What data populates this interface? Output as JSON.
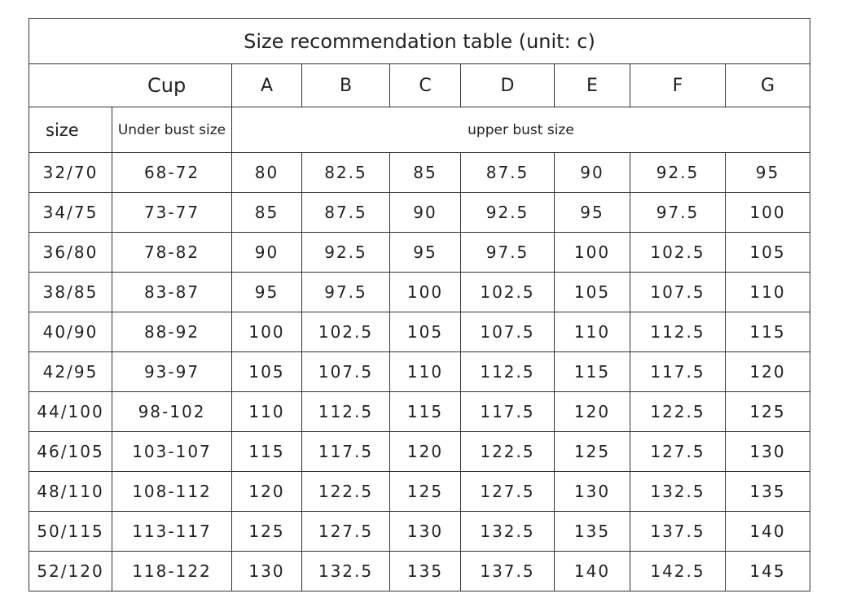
{
  "title": "Size recommendation table (unit: c)",
  "cup_label": "Cup",
  "cups": [
    "A",
    "B",
    "C",
    "D",
    "E",
    "F",
    "G"
  ],
  "size_label": "size",
  "under_bust_label": "Under bust size",
  "upper_bust_label": "upper bust size",
  "rows": [
    {
      "size": "32/70",
      "under": "68-72",
      "upper": [
        "80",
        "82.5",
        "85",
        "87.5",
        "90",
        "92.5",
        "95"
      ]
    },
    {
      "size": "34/75",
      "under": "73-77",
      "upper": [
        "85",
        "87.5",
        "90",
        "92.5",
        "95",
        "97.5",
        "100"
      ]
    },
    {
      "size": "36/80",
      "under": "78-82",
      "upper": [
        "90",
        "92.5",
        "95",
        "97.5",
        "100",
        "102.5",
        "105"
      ]
    },
    {
      "size": "38/85",
      "under": "83-87",
      "upper": [
        "95",
        "97.5",
        "100",
        "102.5",
        "105",
        "107.5",
        "110"
      ]
    },
    {
      "size": "40/90",
      "under": "88-92",
      "upper": [
        "100",
        "102.5",
        "105",
        "107.5",
        "110",
        "112.5",
        "115"
      ]
    },
    {
      "size": "42/95",
      "under": "93-97",
      "upper": [
        "105",
        "107.5",
        "110",
        "112.5",
        "115",
        "117.5",
        "120"
      ]
    },
    {
      "size": "44/100",
      "under": "98-102",
      "upper": [
        "110",
        "112.5",
        "115",
        "117.5",
        "120",
        "122.5",
        "125"
      ]
    },
    {
      "size": "46/105",
      "under": "103-107",
      "upper": [
        "115",
        "117.5",
        "120",
        "122.5",
        "125",
        "127.5",
        "130"
      ]
    },
    {
      "size": "48/110",
      "under": "108-112",
      "upper": [
        "120",
        "122.5",
        "125",
        "127.5",
        "130",
        "132.5",
        "135"
      ]
    },
    {
      "size": "50/115",
      "under": "113-117",
      "upper": [
        "125",
        "127.5",
        "130",
        "132.5",
        "135",
        "137.5",
        "140"
      ]
    },
    {
      "size": "52/120",
      "under": "118-122",
      "upper": [
        "130",
        "132.5",
        "135",
        "137.5",
        "140",
        "142.5",
        "145"
      ]
    }
  ]
}
